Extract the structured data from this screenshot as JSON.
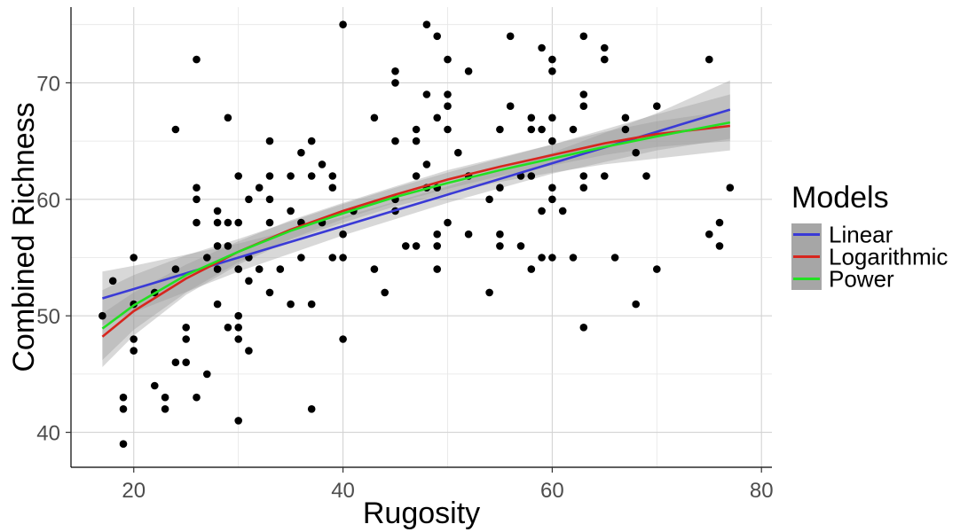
{
  "chart_data": {
    "type": "scatter",
    "title": "",
    "xlabel": "Rugosity",
    "ylabel": "Combined Richness",
    "xlim": [
      14,
      81
    ],
    "ylim": [
      37,
      76.5
    ],
    "x_ticks": [
      20,
      40,
      60,
      80
    ],
    "y_ticks": [
      40,
      50,
      60,
      70
    ],
    "grid": true,
    "legend": {
      "title": "Models",
      "position": "right",
      "entries": [
        {
          "name": "Linear",
          "color": "#3a3ad6"
        },
        {
          "name": "Logarithmic",
          "color": "#d7261e"
        },
        {
          "name": "Power",
          "color": "#22e022"
        }
      ]
    },
    "points": [
      [
        17,
        50
      ],
      [
        18,
        53
      ],
      [
        19,
        43
      ],
      [
        19,
        42
      ],
      [
        19,
        39
      ],
      [
        20,
        55
      ],
      [
        20,
        51
      ],
      [
        20,
        48
      ],
      [
        20,
        47
      ],
      [
        22,
        52
      ],
      [
        22,
        44
      ],
      [
        23,
        43
      ],
      [
        23,
        42
      ],
      [
        24,
        66
      ],
      [
        24,
        54
      ],
      [
        24,
        46
      ],
      [
        25,
        49
      ],
      [
        25,
        48
      ],
      [
        25,
        46
      ],
      [
        26,
        72
      ],
      [
        26,
        61
      ],
      [
        26,
        60
      ],
      [
        26,
        58
      ],
      [
        26,
        43
      ],
      [
        27,
        55
      ],
      [
        27,
        45
      ],
      [
        28,
        59
      ],
      [
        28,
        58
      ],
      [
        28,
        56
      ],
      [
        28,
        54
      ],
      [
        28,
        51
      ],
      [
        29,
        67
      ],
      [
        29,
        58
      ],
      [
        29,
        56
      ],
      [
        29,
        49
      ],
      [
        30,
        62
      ],
      [
        30,
        58
      ],
      [
        30,
        54
      ],
      [
        30,
        50
      ],
      [
        30,
        49
      ],
      [
        30,
        48
      ],
      [
        30,
        41
      ],
      [
        31,
        60
      ],
      [
        31,
        55
      ],
      [
        31,
        53
      ],
      [
        31,
        47
      ],
      [
        32,
        61
      ],
      [
        32,
        54
      ],
      [
        33,
        65
      ],
      [
        33,
        62
      ],
      [
        33,
        60
      ],
      [
        33,
        58
      ],
      [
        33,
        52
      ],
      [
        34,
        54
      ],
      [
        35,
        62
      ],
      [
        35,
        59
      ],
      [
        35,
        51
      ],
      [
        36,
        64
      ],
      [
        36,
        58
      ],
      [
        36,
        55
      ],
      [
        37,
        65
      ],
      [
        37,
        62
      ],
      [
        37,
        51
      ],
      [
        37,
        42
      ],
      [
        38,
        63
      ],
      [
        38,
        58
      ],
      [
        39,
        62
      ],
      [
        39,
        61
      ],
      [
        39,
        55
      ],
      [
        40,
        75
      ],
      [
        40,
        57
      ],
      [
        40,
        55
      ],
      [
        40,
        48
      ],
      [
        41,
        59
      ],
      [
        43,
        67
      ],
      [
        43,
        54
      ],
      [
        44,
        52
      ],
      [
        45,
        71
      ],
      [
        45,
        70
      ],
      [
        45,
        65
      ],
      [
        45,
        60
      ],
      [
        45,
        59
      ],
      [
        46,
        56
      ],
      [
        47,
        66
      ],
      [
        47,
        65
      ],
      [
        47,
        62
      ],
      [
        47,
        56
      ],
      [
        48,
        75
      ],
      [
        48,
        69
      ],
      [
        48,
        63
      ],
      [
        48,
        61
      ],
      [
        49,
        74
      ],
      [
        49,
        67
      ],
      [
        49,
        61
      ],
      [
        49,
        57
      ],
      [
        49,
        56
      ],
      [
        49,
        54
      ],
      [
        50,
        72
      ],
      [
        50,
        69
      ],
      [
        50,
        68
      ],
      [
        50,
        66
      ],
      [
        50,
        58
      ],
      [
        51,
        64
      ],
      [
        52,
        71
      ],
      [
        52,
        62
      ],
      [
        52,
        57
      ],
      [
        54,
        60
      ],
      [
        54,
        52
      ],
      [
        55,
        66
      ],
      [
        55,
        61
      ],
      [
        55,
        57
      ],
      [
        55,
        56
      ],
      [
        56,
        74
      ],
      [
        56,
        68
      ],
      [
        57,
        62
      ],
      [
        57,
        56
      ],
      [
        58,
        67
      ],
      [
        58,
        66
      ],
      [
        58,
        62
      ],
      [
        58,
        54
      ],
      [
        59,
        73
      ],
      [
        59,
        66
      ],
      [
        59,
        59
      ],
      [
        59,
        55
      ],
      [
        60,
        72
      ],
      [
        60,
        71
      ],
      [
        60,
        67
      ],
      [
        60,
        65
      ],
      [
        60,
        61
      ],
      [
        60,
        60
      ],
      [
        60,
        55
      ],
      [
        61,
        59
      ],
      [
        62,
        66
      ],
      [
        62,
        55
      ],
      [
        63,
        74
      ],
      [
        63,
        69
      ],
      [
        63,
        68
      ],
      [
        63,
        62
      ],
      [
        63,
        61
      ],
      [
        63,
        49
      ],
      [
        65,
        73
      ],
      [
        65,
        72
      ],
      [
        65,
        62
      ],
      [
        66,
        55
      ],
      [
        67,
        67
      ],
      [
        67,
        66
      ],
      [
        68,
        64
      ],
      [
        68,
        51
      ],
      [
        69,
        62
      ],
      [
        70,
        68
      ],
      [
        70,
        54
      ],
      [
        75,
        72
      ],
      [
        75,
        57
      ],
      [
        76,
        58
      ],
      [
        76,
        56
      ],
      [
        77,
        61
      ]
    ],
    "series": [
      {
        "name": "Linear",
        "x": [
          17,
          20,
          30,
          40,
          50,
          60,
          70,
          77
        ],
        "y": [
          51.5,
          52.3,
          55.0,
          57.7,
          60.4,
          63.1,
          65.8,
          67.7
        ],
        "ci_halfwidth": [
          2.3,
          2.0,
          1.2,
          0.8,
          0.7,
          0.9,
          1.6,
          2.5
        ]
      },
      {
        "name": "Logarithmic",
        "x": [
          17,
          20,
          25,
          30,
          35,
          40,
          45,
          50,
          55,
          60,
          65,
          70,
          77
        ],
        "y": [
          48.2,
          50.4,
          53.2,
          55.5,
          57.4,
          59.0,
          60.4,
          61.7,
          62.8,
          63.8,
          64.8,
          65.6,
          66.3
        ],
        "ci_halfwidth": [
          2.0,
          1.6,
          1.2,
          0.9,
          0.8,
          0.7,
          0.7,
          0.8,
          0.8,
          0.9,
          1.0,
          1.1,
          1.3
        ]
      },
      {
        "name": "Power",
        "x": [
          17,
          20,
          25,
          30,
          35,
          40,
          45,
          50,
          55,
          60,
          65,
          70,
          77
        ],
        "y": [
          48.9,
          50.9,
          53.5,
          55.5,
          57.3,
          58.8,
          60.2,
          61.4,
          62.5,
          63.5,
          64.5,
          65.4,
          66.6
        ],
        "ci_halfwidth": [
          3.3,
          2.6,
          1.7,
          1.1,
          0.8,
          0.8,
          0.8,
          0.9,
          1.0,
          1.2,
          1.5,
          1.9,
          2.4
        ]
      }
    ]
  }
}
